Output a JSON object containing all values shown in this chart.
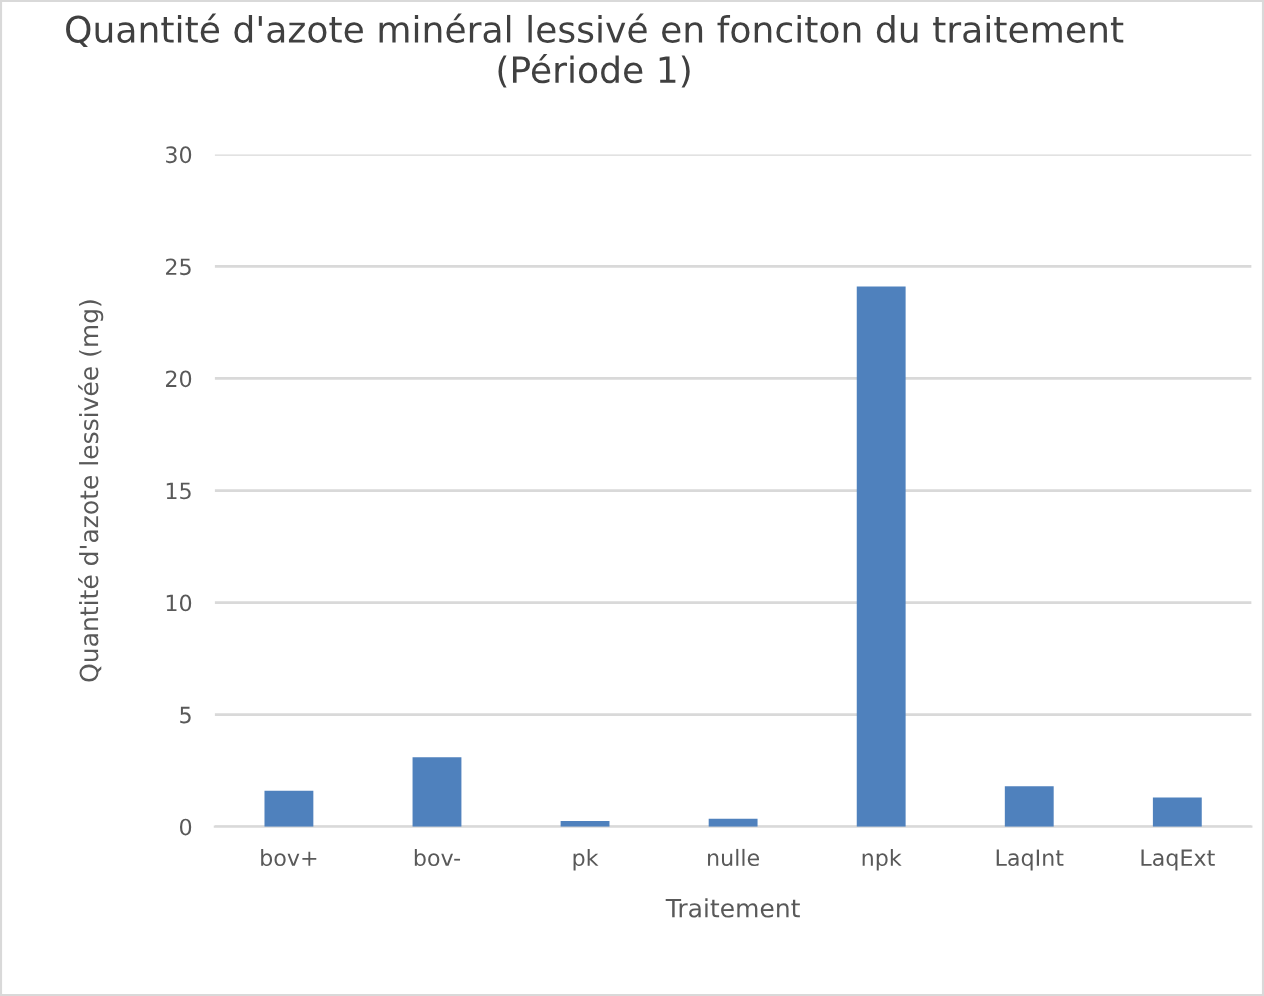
{
  "chart_data": {
    "type": "bar",
    "title": "Quantité d'azote minéral lessivé en fonciton du traitement\n(Période 1)",
    "xlabel": "Traitement",
    "ylabel": "Quantité d'azote lessivée (mg)",
    "categories": [
      "bov+",
      "bov-",
      "pk",
      "nulle",
      "npk",
      "LaqInt",
      "LaqExt"
    ],
    "values": [
      1.6,
      3.1,
      0.25,
      0.35,
      24.1,
      1.8,
      1.3
    ],
    "color": "#4f81bd",
    "ylim": [
      0,
      30
    ],
    "yticks": [
      0,
      5,
      10,
      15,
      20,
      25,
      30
    ],
    "grid": "y"
  }
}
